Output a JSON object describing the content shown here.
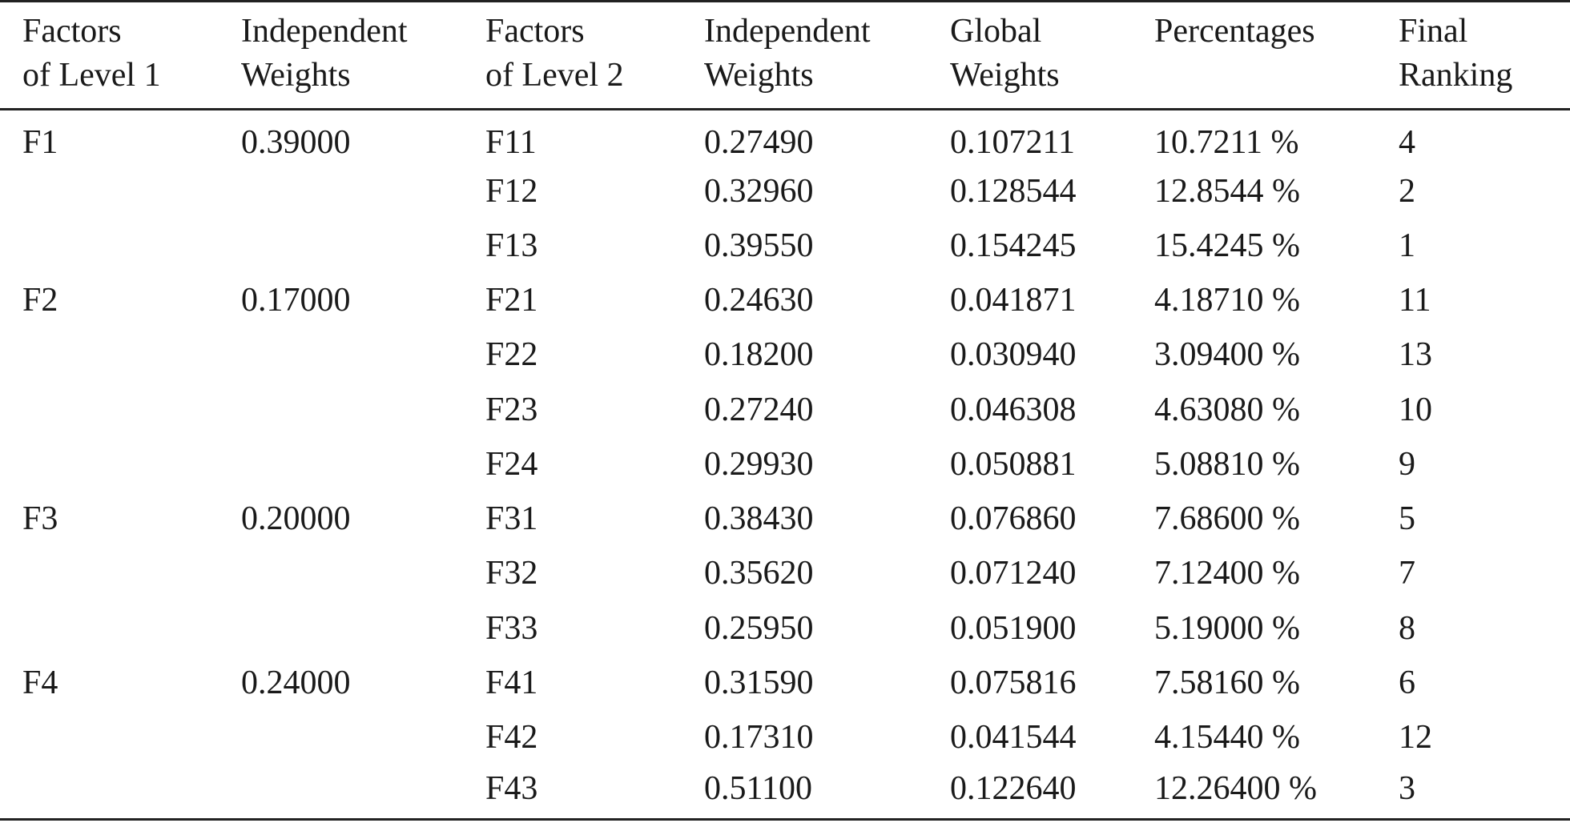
{
  "table": {
    "headers": [
      {
        "line1": "Factors",
        "line2": "of Level 1"
      },
      {
        "line1": "Independent",
        "line2": "Weights"
      },
      {
        "line1": "Factors",
        "line2": "of Level 2"
      },
      {
        "line1": "Independent",
        "line2": "Weights"
      },
      {
        "line1": "Global",
        "line2": "Weights"
      },
      {
        "line1": "Percentages",
        "line2": ""
      },
      {
        "line1": "Final",
        "line2": "Ranking"
      }
    ],
    "rows": [
      [
        "F1",
        "0.39000",
        "F11",
        "0.27490",
        "0.107211",
        "10.7211 %",
        "4"
      ],
      [
        "",
        "",
        "F12",
        "0.32960",
        "0.128544",
        "12.8544 %",
        "2"
      ],
      [
        "",
        "",
        "F13",
        "0.39550",
        "0.154245",
        "15.4245 %",
        "1"
      ],
      [
        "F2",
        "0.17000",
        "F21",
        "0.24630",
        "0.041871",
        "4.18710 %",
        "11"
      ],
      [
        "",
        "",
        "F22",
        "0.18200",
        "0.030940",
        "3.09400 %",
        "13"
      ],
      [
        "",
        "",
        "F23",
        "0.27240",
        "0.046308",
        "4.63080 %",
        "10"
      ],
      [
        "",
        "",
        "F24",
        "0.29930",
        "0.050881",
        "5.08810 %",
        "9"
      ],
      [
        "F3",
        "0.20000",
        "F31",
        "0.38430",
        "0.076860",
        "7.68600 %",
        "5"
      ],
      [
        "",
        "",
        "F32",
        "0.35620",
        "0.071240",
        "7.12400 %",
        "7"
      ],
      [
        "",
        "",
        "F33",
        "0.25950",
        "0.051900",
        "5.19000 %",
        "8"
      ],
      [
        "F4",
        "0.24000",
        "F41",
        "0.31590",
        "0.075816",
        "7.58160 %",
        "6"
      ],
      [
        "",
        "",
        "F42",
        "0.17310",
        "0.041544",
        "4.15440 %",
        "12"
      ],
      [
        "",
        "",
        "F43",
        "0.51100",
        "0.122640",
        "12.26400 %",
        "3"
      ]
    ]
  }
}
